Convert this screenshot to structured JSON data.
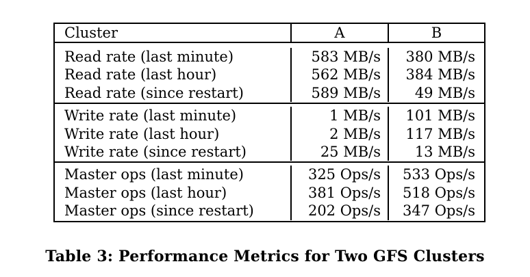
{
  "table": {
    "headers": [
      "Cluster",
      "A",
      "B"
    ],
    "groups": [
      {
        "rows": [
          {
            "label": "Read rate (last minute)",
            "a": "583 MB/s",
            "b": "380 MB/s"
          },
          {
            "label": "Read rate (last hour)",
            "a": "562 MB/s",
            "b": "384 MB/s"
          },
          {
            "label": "Read rate (since restart)",
            "a": "589 MB/s",
            "b": "49 MB/s"
          }
        ]
      },
      {
        "rows": [
          {
            "label": "Write rate (last minute)",
            "a": "1 MB/s",
            "b": "101 MB/s"
          },
          {
            "label": "Write rate (last hour)",
            "a": "2 MB/s",
            "b": "117 MB/s"
          },
          {
            "label": "Write rate (since restart)",
            "a": "25 MB/s",
            "b": "13 MB/s"
          }
        ]
      },
      {
        "rows": [
          {
            "label": "Master ops (last minute)",
            "a": "325 Ops/s",
            "b": "533 Ops/s"
          },
          {
            "label": "Master ops (last hour)",
            "a": "381 Ops/s",
            "b": "518 Ops/s"
          },
          {
            "label": "Master ops (since restart)",
            "a": "202 Ops/s",
            "b": "347 Ops/s"
          }
        ]
      }
    ]
  },
  "caption": "Table 3: Performance Metrics for Two GFS Clusters"
}
